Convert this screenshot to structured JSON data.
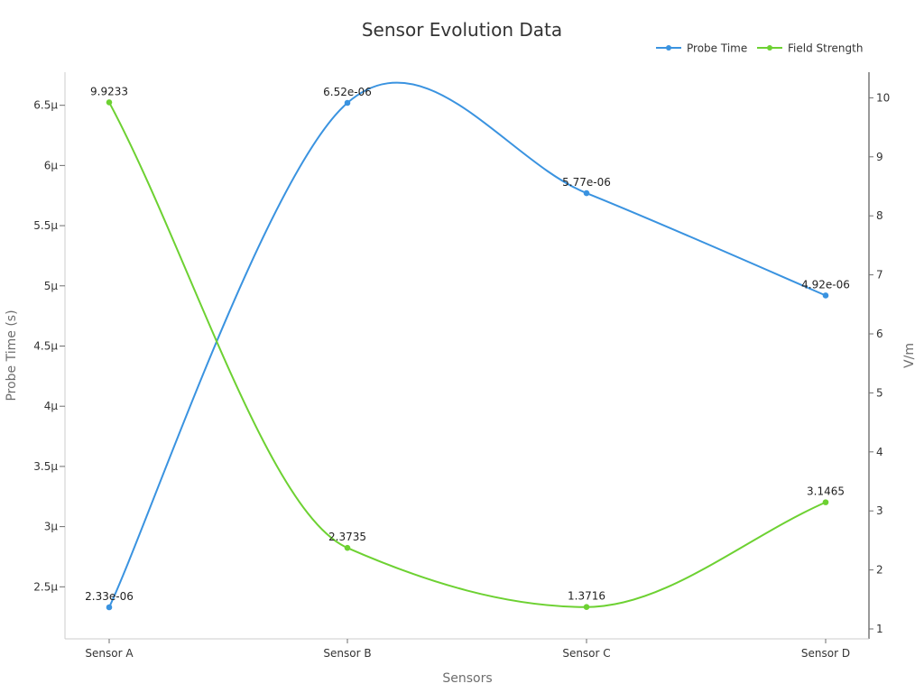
{
  "chart_data": {
    "type": "line",
    "title": "Sensor Evolution Data",
    "xlabel": "Sensors",
    "ylabel_left": "Probe Time (s)",
    "ylabel_right": "V/m",
    "categories": [
      "Sensor A",
      "Sensor B",
      "Sensor C",
      "Sensor D"
    ],
    "y_left": {
      "ylim": [
        2.33e-06,
        6.52e-06
      ],
      "ticks": [
        2.5e-06,
        3e-06,
        3.5e-06,
        4e-06,
        4.5e-06,
        5e-06,
        5.5e-06,
        6e-06,
        6.5e-06
      ],
      "tick_labels": [
        "2.5µ",
        "3µ",
        "3.5µ",
        "4µ",
        "4.5µ",
        "5µ",
        "5.5µ",
        "6µ",
        "6.5µ"
      ]
    },
    "y_right": {
      "ylim": [
        0.8,
        10.4
      ],
      "ticks": [
        1,
        2,
        3,
        4,
        5,
        6,
        7,
        8,
        9,
        10
      ],
      "tick_labels": [
        "1",
        "2",
        "3",
        "4",
        "5",
        "6",
        "7",
        "8",
        "9",
        "10"
      ]
    },
    "series": [
      {
        "name": "Probe Time",
        "axis": "left",
        "color": "#3a93e0",
        "values": [
          2.33e-06,
          6.52e-06,
          5.77e-06,
          4.92e-06
        ],
        "labels": [
          "2.33e-06",
          "6.52e-06",
          "5.77e-06",
          "4.92e-06"
        ]
      },
      {
        "name": "Field Strength",
        "axis": "right",
        "color": "#6dd132",
        "values": [
          9.9233,
          2.3735,
          1.3716,
          3.1465
        ],
        "labels": [
          "9.9233",
          "2.3735",
          "1.3716",
          "3.1465"
        ]
      }
    ],
    "legend": "top-right",
    "grid": false,
    "smooth": true
  }
}
